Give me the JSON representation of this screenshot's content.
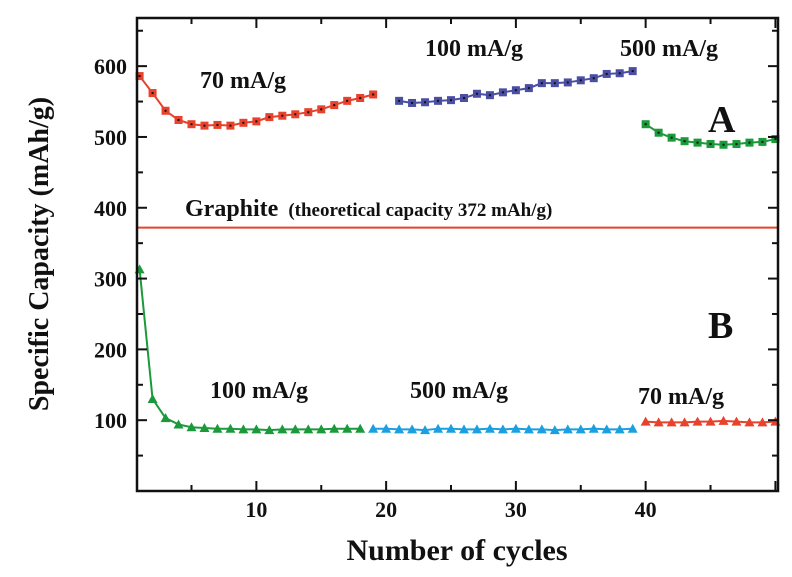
{
  "chart_data": {
    "type": "line",
    "xlabel": "Number of cycles",
    "ylabel": "Specific Capacity (mAh/g)",
    "xlim": [
      0.8,
      50.2
    ],
    "ylim": [
      0,
      668
    ],
    "xticks": [
      10,
      20,
      30,
      40
    ],
    "yticks": [
      100,
      200,
      300,
      400,
      500,
      600
    ],
    "grid": false,
    "series": [
      {
        "group": "A",
        "marker": "square",
        "color": "#e8412c",
        "x": [
          1,
          2,
          3,
          4,
          5,
          6,
          7,
          8,
          9,
          10,
          11,
          12,
          13,
          14,
          15,
          16,
          17,
          18,
          19
        ],
        "y": [
          586,
          562,
          537,
          524,
          518,
          516,
          517,
          516,
          520,
          522,
          528,
          530,
          532,
          535,
          539,
          545,
          551,
          555,
          560
        ]
      },
      {
        "group": "A",
        "marker": "square",
        "color": "#4a4fa3",
        "x": [
          21,
          22,
          23,
          24,
          25,
          26,
          27,
          28,
          29,
          30,
          31,
          32,
          33,
          34,
          35,
          36,
          37,
          38,
          39
        ],
        "y": [
          551,
          548,
          549,
          551,
          552,
          555,
          561,
          559,
          563,
          566,
          569,
          576,
          576,
          577,
          580,
          583,
          589,
          590,
          593
        ]
      },
      {
        "group": "A",
        "marker": "square",
        "color": "#1a9a3a",
        "x": [
          40,
          41,
          42,
          43,
          44,
          45,
          46,
          47,
          48,
          49,
          50
        ],
        "y": [
          518,
          506,
          499,
          494,
          492,
          490,
          489,
          490,
          492,
          493,
          497
        ]
      },
      {
        "group": "B",
        "marker": "triangle",
        "color": "#1a9a3a",
        "x": [
          1,
          2,
          3,
          4,
          5,
          6,
          7,
          8,
          9,
          10,
          11,
          12,
          13,
          14,
          15,
          16,
          17,
          18
        ],
        "y": [
          313,
          130,
          103,
          94,
          90,
          89,
          88,
          88,
          87,
          87,
          86,
          87,
          87,
          87,
          87,
          88,
          88,
          88
        ]
      },
      {
        "group": "B",
        "marker": "triangle",
        "color": "#1aa0e0",
        "x": [
          19,
          20,
          21,
          22,
          23,
          24,
          25,
          26,
          27,
          28,
          29,
          30,
          31,
          32,
          33,
          34,
          35,
          36,
          37,
          38,
          39
        ],
        "y": [
          88,
          88,
          87,
          87,
          86,
          88,
          88,
          87,
          87,
          88,
          87,
          88,
          87,
          87,
          86,
          87,
          87,
          88,
          87,
          87,
          88
        ]
      },
      {
        "group": "B",
        "marker": "triangle",
        "color": "#e8412c",
        "x": [
          40,
          41,
          42,
          43,
          44,
          45,
          46,
          47,
          48,
          49,
          50
        ],
        "y": [
          98,
          97,
          97,
          97,
          98,
          98,
          99,
          98,
          97,
          97,
          98
        ]
      }
    ],
    "reference_line": {
      "y": 372,
      "color": "#e8412c",
      "label": "Graphite",
      "note": "(theoretical capacity 372 mAh/g)"
    },
    "annotations": {
      "a_rate1": "70 mA/g",
      "a_rate2": "100 mA/g",
      "a_rate3": "500 mA/g",
      "b_rate1": "100 mA/g",
      "b_rate2": "500 mA/g",
      "b_rate3": "70 mA/g",
      "label_a": "A",
      "label_b": "B"
    }
  }
}
